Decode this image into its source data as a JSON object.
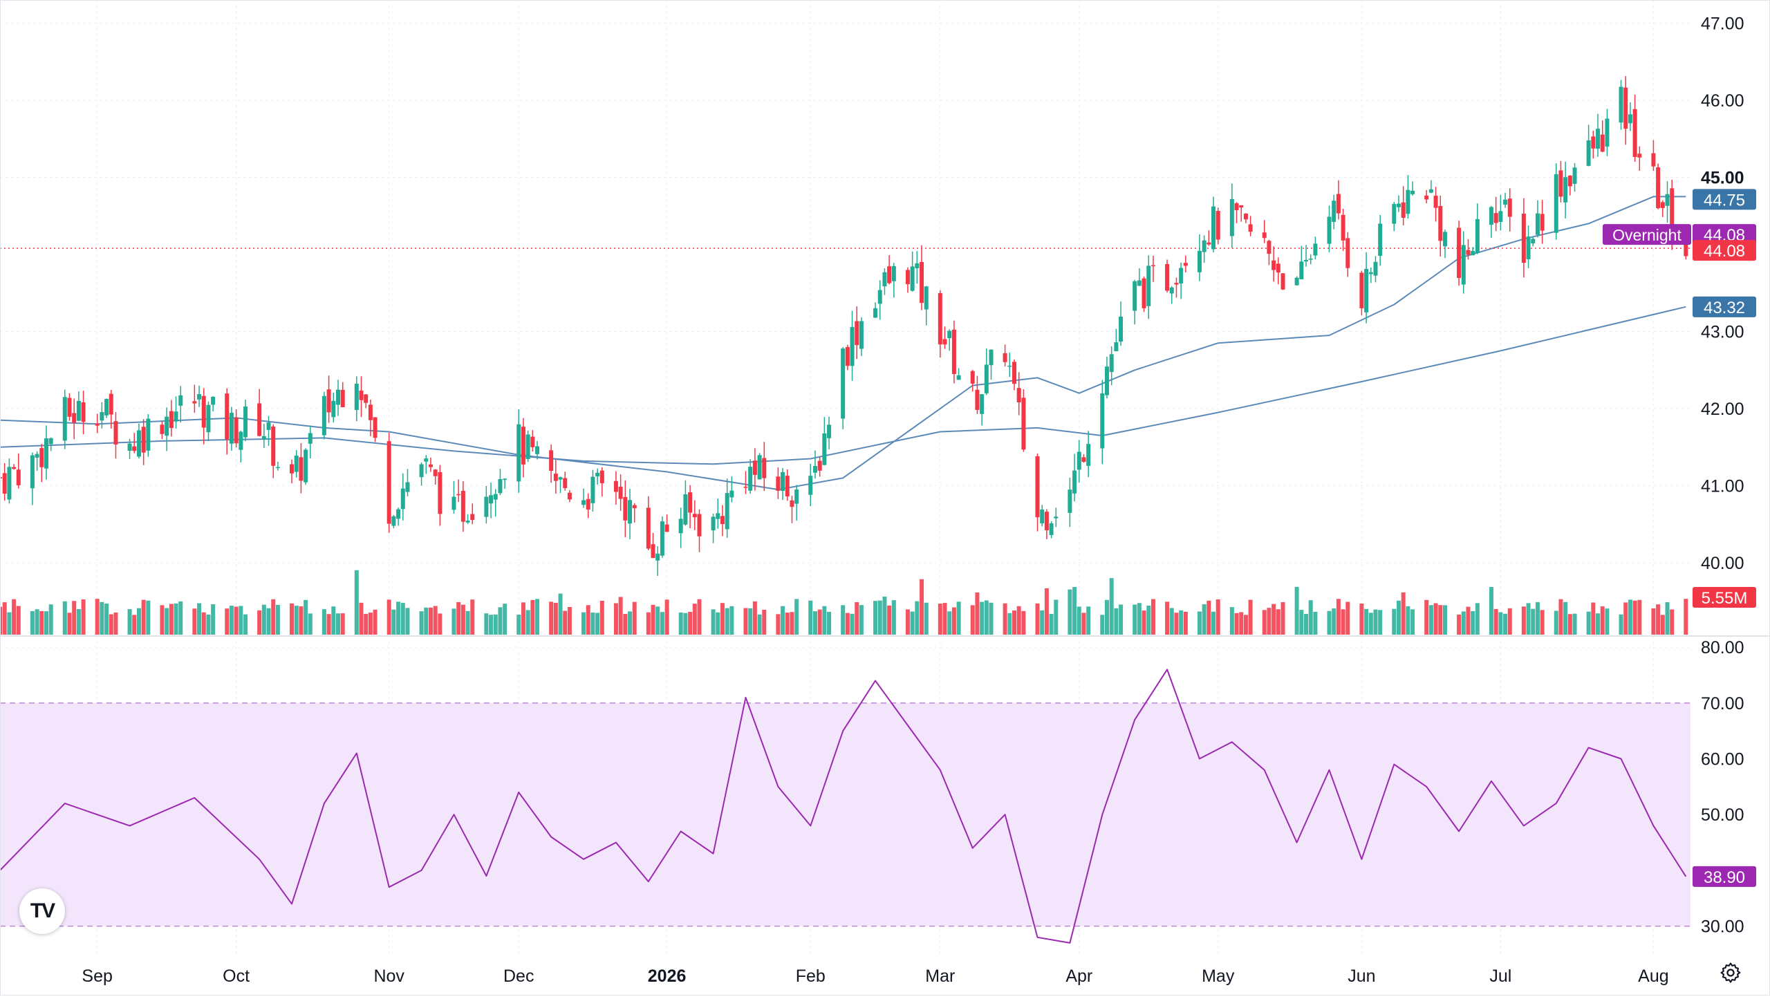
{
  "chart_data": [
    {
      "type": "candlestick",
      "title": "",
      "yaxis": {
        "ylim": [
          39.05,
          47.3
        ],
        "ticks": [
          "47.00",
          "46.00",
          "45.00",
          "43.00",
          "42.00",
          "41.00",
          "40.00"
        ],
        "side": "right"
      },
      "xaxis": {
        "labels": [
          "Sep",
          "Oct",
          "Nov",
          "Dec",
          "2026",
          "Feb",
          "Mar",
          "Apr",
          "May",
          "Jun",
          "Jul",
          "Aug"
        ],
        "label_dates": [
          "2025-09-01",
          "2025-10-01",
          "2025-11-03",
          "2025-12-01",
          "2026-01-02",
          "2026-02-02",
          "2026-03-02",
          "2026-04-01",
          "2026-05-01",
          "2026-06-01",
          "2026-07-01",
          "2026-08-03"
        ],
        "range": [
          "2025-08-11",
          "2026-08-11"
        ]
      },
      "close_points": [
        [
          "2025-08-11",
          41.1
        ],
        [
          "2025-08-18",
          41.3
        ],
        [
          "2025-08-25",
          41.9
        ],
        [
          "2025-09-01",
          42.05
        ],
        [
          "2025-09-08",
          41.55
        ],
        [
          "2025-09-15",
          41.9
        ],
        [
          "2025-09-22",
          42.1
        ],
        [
          "2025-09-29",
          41.75
        ],
        [
          "2025-10-06",
          41.85
        ],
        [
          "2025-10-13",
          41.0
        ],
        [
          "2025-10-20",
          41.95
        ],
        [
          "2025-10-27",
          42.55
        ],
        [
          "2025-11-03",
          40.75
        ],
        [
          "2025-11-10",
          41.3
        ],
        [
          "2025-11-17",
          40.6
        ],
        [
          "2025-11-24",
          41.0
        ],
        [
          "2025-12-01",
          41.55
        ],
        [
          "2025-12-08",
          41.05
        ],
        [
          "2025-12-15",
          40.9
        ],
        [
          "2025-12-22",
          41.0
        ],
        [
          "2025-12-29",
          40.2
        ],
        [
          "2026-01-05",
          40.65
        ],
        [
          "2026-01-12",
          40.5
        ],
        [
          "2026-01-19",
          41.2
        ],
        [
          "2026-01-26",
          41.05
        ],
        [
          "2026-02-02",
          40.9
        ],
        [
          "2026-02-09",
          42.7
        ],
        [
          "2026-02-16",
          43.5
        ],
        [
          "2026-02-23",
          43.85
        ],
        [
          "2026-03-02",
          43.05
        ],
        [
          "2026-03-09",
          42.1
        ],
        [
          "2026-03-16",
          42.8
        ],
        [
          "2026-03-23",
          40.6
        ],
        [
          "2026-03-30",
          40.9
        ],
        [
          "2026-04-06",
          42.4
        ],
        [
          "2026-04-13",
          43.5
        ],
        [
          "2026-04-20",
          43.7
        ],
        [
          "2026-04-27",
          44.3
        ],
        [
          "2026-05-04",
          44.45
        ],
        [
          "2026-05-11",
          44.1
        ],
        [
          "2026-05-18",
          43.5
        ],
        [
          "2026-05-25",
          44.7
        ],
        [
          "2026-06-01",
          43.5
        ],
        [
          "2026-06-08",
          44.6
        ],
        [
          "2026-06-15",
          44.9
        ],
        [
          "2026-06-22",
          43.7
        ],
        [
          "2026-06-29",
          44.75
        ],
        [
          "2026-07-06",
          44.1
        ],
        [
          "2026-07-13",
          44.9
        ],
        [
          "2026-07-20",
          45.3
        ],
        [
          "2026-07-27",
          45.9
        ],
        [
          "2026-08-03",
          44.9
        ],
        [
          "2026-08-10",
          44.08
        ]
      ],
      "ma_short_points": [
        [
          "2025-08-11",
          41.85
        ],
        [
          "2025-09-01",
          41.8
        ],
        [
          "2025-10-01",
          41.88
        ],
        [
          "2025-10-20",
          41.75
        ],
        [
          "2025-11-03",
          41.7
        ],
        [
          "2025-12-01",
          41.4
        ],
        [
          "2026-01-02",
          41.18
        ],
        [
          "2026-01-26",
          40.95
        ],
        [
          "2026-02-09",
          41.1
        ],
        [
          "2026-02-23",
          41.7
        ],
        [
          "2026-03-09",
          42.3
        ],
        [
          "2026-03-23",
          42.4
        ],
        [
          "2026-04-01",
          42.2
        ],
        [
          "2026-04-13",
          42.5
        ],
        [
          "2026-05-01",
          42.85
        ],
        [
          "2026-05-25",
          42.95
        ],
        [
          "2026-06-08",
          43.35
        ],
        [
          "2026-06-22",
          43.95
        ],
        [
          "2026-07-06",
          44.2
        ],
        [
          "2026-07-20",
          44.4
        ],
        [
          "2026-08-03",
          44.75
        ],
        [
          "2026-08-10",
          44.75
        ]
      ],
      "ma_long_points": [
        [
          "2025-08-11",
          41.5
        ],
        [
          "2025-09-15",
          41.58
        ],
        [
          "2025-10-20",
          41.62
        ],
        [
          "2025-11-17",
          41.45
        ],
        [
          "2025-12-15",
          41.32
        ],
        [
          "2026-01-12",
          41.28
        ],
        [
          "2026-02-02",
          41.35
        ],
        [
          "2026-03-02",
          41.7
        ],
        [
          "2026-03-23",
          41.75
        ],
        [
          "2026-04-06",
          41.65
        ],
        [
          "2026-05-01",
          41.95
        ],
        [
          "2026-06-01",
          42.35
        ],
        [
          "2026-07-01",
          42.75
        ],
        [
          "2026-08-10",
          43.32
        ]
      ],
      "price_labels": {
        "ma_short": "44.75",
        "overnight_label": "Overnight",
        "overnight_value": "44.08",
        "last": "44.08",
        "ma_long": "43.32"
      },
      "volume_label": "5.55M",
      "colors": {
        "up": "#22ab94",
        "down": "#f23645",
        "ma_line": "#5b8ab8",
        "ma_badge": "#3a75a8",
        "overnight": "#9c27b0",
        "last": "#f23645",
        "grid": "#e9ecf2"
      },
      "grid": true
    },
    {
      "type": "line",
      "title": "",
      "yaxis": {
        "ylim": [
          25,
          82
        ],
        "ticks": [
          "80.00",
          "70.00",
          "60.00",
          "50.00",
          "30.00"
        ],
        "band": [
          30,
          70
        ],
        "side": "right"
      },
      "points": [
        [
          "2025-08-11",
          40
        ],
        [
          "2025-08-25",
          52
        ],
        [
          "2025-09-08",
          48
        ],
        [
          "2025-09-22",
          53
        ],
        [
          "2025-10-06",
          42
        ],
        [
          "2025-10-13",
          34
        ],
        [
          "2025-10-20",
          52
        ],
        [
          "2025-10-27",
          61
        ],
        [
          "2025-11-03",
          37
        ],
        [
          "2025-11-10",
          40
        ],
        [
          "2025-11-17",
          50
        ],
        [
          "2025-11-24",
          39
        ],
        [
          "2025-12-01",
          54
        ],
        [
          "2025-12-08",
          46
        ],
        [
          "2025-12-15",
          42
        ],
        [
          "2025-12-22",
          45
        ],
        [
          "2025-12-29",
          38
        ],
        [
          "2026-01-05",
          47
        ],
        [
          "2026-01-12",
          43
        ],
        [
          "2026-01-19",
          71
        ],
        [
          "2026-01-26",
          55
        ],
        [
          "2026-02-02",
          48
        ],
        [
          "2026-02-09",
          65
        ],
        [
          "2026-02-16",
          74
        ],
        [
          "2026-02-23",
          66
        ],
        [
          "2026-03-02",
          58
        ],
        [
          "2026-03-09",
          44
        ],
        [
          "2026-03-16",
          50
        ],
        [
          "2026-03-23",
          28
        ],
        [
          "2026-03-30",
          27
        ],
        [
          "2026-04-06",
          50
        ],
        [
          "2026-04-13",
          67
        ],
        [
          "2026-04-20",
          76
        ],
        [
          "2026-04-27",
          60
        ],
        [
          "2026-05-04",
          63
        ],
        [
          "2026-05-11",
          58
        ],
        [
          "2026-05-18",
          45
        ],
        [
          "2026-05-25",
          58
        ],
        [
          "2026-06-01",
          42
        ],
        [
          "2026-06-08",
          59
        ],
        [
          "2026-06-15",
          55
        ],
        [
          "2026-06-22",
          47
        ],
        [
          "2026-06-29",
          56
        ],
        [
          "2026-07-06",
          48
        ],
        [
          "2026-07-13",
          52
        ],
        [
          "2026-07-20",
          62
        ],
        [
          "2026-07-27",
          60
        ],
        [
          "2026-08-03",
          48
        ],
        [
          "2026-08-10",
          38.9
        ]
      ],
      "last_label": "38.90",
      "colors": {
        "line": "#9c27b0",
        "band": "#f3e5fb",
        "badge": "#9c27b0"
      }
    }
  ],
  "logo": {
    "text": "TV"
  },
  "icons": {
    "settings": "gear-icon",
    "logo": "tradingview-logo-icon"
  }
}
